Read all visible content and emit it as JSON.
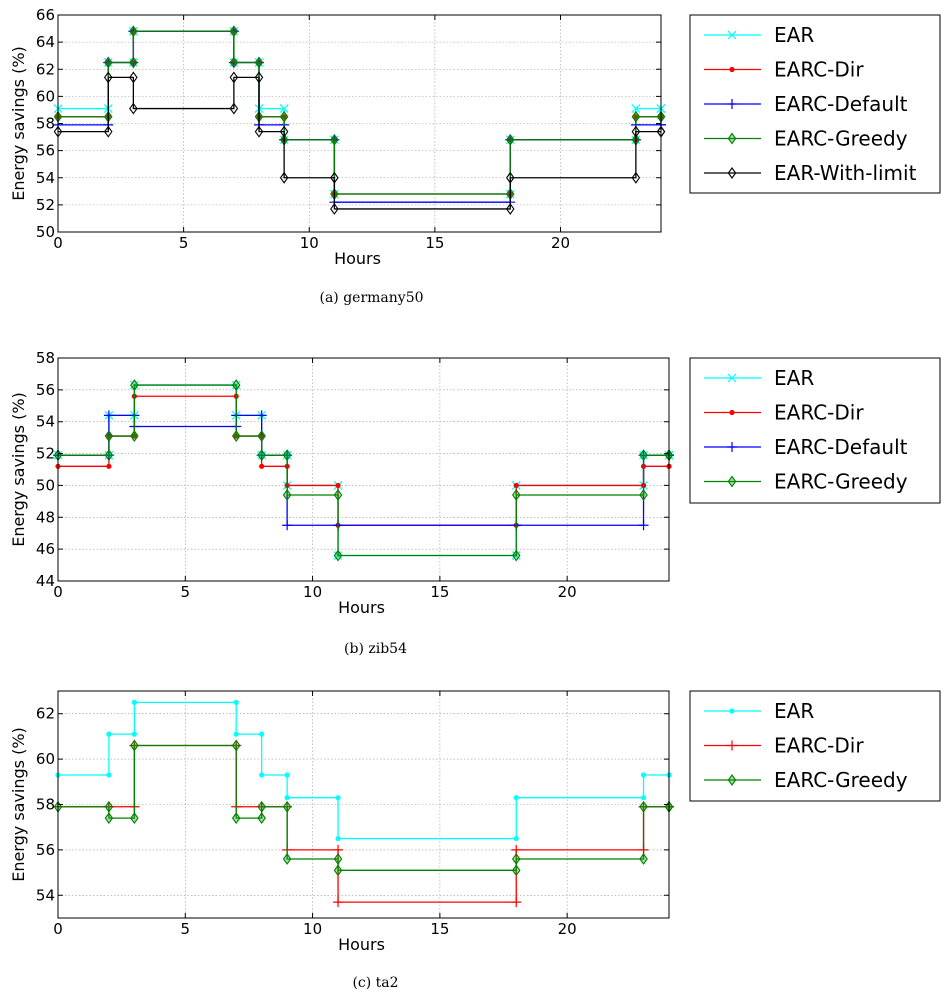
{
  "chart_data": [
    {
      "type": "line",
      "step": true,
      "caption": "(a) germany50",
      "xlabel": "Hours",
      "ylabel": "Energy savings (%)",
      "xlim": [
        0,
        24
      ],
      "ylim": [
        50,
        66
      ],
      "xticks": [
        0,
        5,
        10,
        15,
        20
      ],
      "yticks": [
        50,
        52,
        54,
        56,
        58,
        60,
        62,
        64,
        66
      ],
      "grid": true,
      "legend": "right",
      "x": [
        0,
        2,
        3,
        7,
        8,
        9,
        11,
        18,
        23,
        24
      ],
      "series": [
        {
          "name": "EAR",
          "color": "#00ffff",
          "marker": "x",
          "values": [
            59.1,
            62.5,
            64.8,
            62.5,
            59.1,
            56.8,
            52.8,
            56.8,
            59.1,
            59.1
          ]
        },
        {
          "name": "EARC-Dir",
          "color": "#ff0000",
          "marker": "dot",
          "values": [
            58.5,
            62.5,
            64.8,
            62.5,
            58.5,
            56.8,
            52.8,
            56.8,
            58.5,
            58.5
          ]
        },
        {
          "name": "EARC-Default",
          "color": "#0000ff",
          "marker": "plus",
          "values": [
            57.9,
            62.5,
            64.8,
            62.5,
            57.9,
            56.8,
            52.2,
            56.8,
            57.9,
            57.9
          ]
        },
        {
          "name": "EARC-Greedy",
          "color": "#008000",
          "marker": "diamond",
          "values": [
            58.5,
            62.5,
            64.8,
            62.5,
            58.5,
            56.8,
            52.8,
            56.8,
            58.5,
            58.5
          ]
        },
        {
          "name": "EAR-With-limit",
          "color": "#000000",
          "marker": "diamond",
          "values": [
            57.4,
            61.4,
            59.1,
            61.4,
            57.4,
            54.0,
            51.7,
            54.0,
            57.4,
            57.4
          ]
        }
      ]
    },
    {
      "type": "line",
      "step": true,
      "caption": "(b) zib54",
      "xlabel": "Hours",
      "ylabel": "Energy savings (%)",
      "xlim": [
        0,
        24
      ],
      "ylim": [
        44,
        58
      ],
      "xticks": [
        0,
        5,
        10,
        15,
        20
      ],
      "yticks": [
        44,
        46,
        48,
        50,
        52,
        54,
        56,
        58
      ],
      "grid": true,
      "legend": "right",
      "x": [
        0,
        2,
        3,
        7,
        8,
        9,
        11,
        18,
        23,
        24
      ],
      "series": [
        {
          "name": "EAR",
          "color": "#00ffff",
          "marker": "x",
          "values": [
            51.9,
            54.4,
            56.3,
            54.4,
            51.9,
            50.0,
            45.6,
            50.0,
            51.9,
            51.9
          ]
        },
        {
          "name": "EARC-Dir",
          "color": "#ff0000",
          "marker": "dot",
          "values": [
            51.2,
            53.1,
            55.6,
            53.1,
            51.2,
            50.0,
            47.5,
            50.0,
            51.2,
            51.2
          ]
        },
        {
          "name": "EARC-Default",
          "color": "#0000ff",
          "marker": "plus",
          "values": [
            51.9,
            54.4,
            53.7,
            54.4,
            51.9,
            47.5,
            47.5,
            47.5,
            51.9,
            51.9
          ]
        },
        {
          "name": "EARC-Greedy",
          "color": "#008000",
          "marker": "diamond",
          "values": [
            51.9,
            53.1,
            56.3,
            53.1,
            51.9,
            49.4,
            45.6,
            49.4,
            51.9,
            51.9
          ]
        }
      ]
    },
    {
      "type": "line",
      "step": true,
      "caption": "(c) ta2",
      "xlabel": "Hours",
      "ylabel": "Energy savings (%)",
      "xlim": [
        0,
        24
      ],
      "ylim": [
        53,
        63
      ],
      "xticks": [
        0,
        5,
        10,
        15,
        20
      ],
      "yticks": [
        54,
        56,
        58,
        60,
        62
      ],
      "grid": true,
      "legend": "right",
      "x": [
        0,
        2,
        3,
        7,
        8,
        9,
        11,
        18,
        23,
        24
      ],
      "series": [
        {
          "name": "EAR",
          "color": "#00ffff",
          "marker": "dot",
          "values": [
            59.3,
            61.1,
            62.5,
            61.1,
            59.3,
            58.3,
            56.5,
            58.3,
            59.3,
            59.3
          ]
        },
        {
          "name": "EARC-Dir",
          "color": "#ff0000",
          "marker": "plus",
          "values": [
            57.9,
            57.9,
            60.6,
            57.9,
            57.9,
            56.0,
            53.7,
            56.0,
            57.9,
            57.9
          ]
        },
        {
          "name": "EARC-Greedy",
          "color": "#008000",
          "marker": "diamond",
          "values": [
            57.9,
            57.4,
            60.6,
            57.4,
            57.9,
            55.6,
            55.1,
            55.6,
            57.9,
            57.9
          ]
        }
      ]
    }
  ]
}
